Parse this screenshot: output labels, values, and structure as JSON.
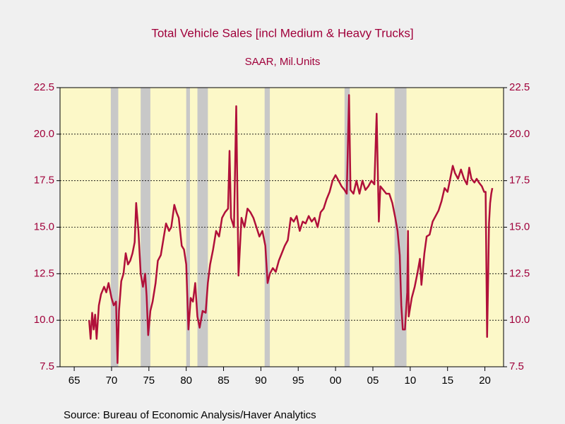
{
  "chart_data": {
    "type": "line",
    "title": "Total Vehicle Sales [incl Medium & Heavy Trucks]",
    "subtitle": "SAAR, Mil.Units",
    "source": "Source:  Bureau of Economic Analysis/Haver Analytics",
    "xlim": [
      1963.1,
      2022.5
    ],
    "xticks": [
      {
        "value": 1965,
        "label": "65"
      },
      {
        "value": 1970,
        "label": "70"
      },
      {
        "value": 1975,
        "label": "75"
      },
      {
        "value": 1980,
        "label": "80"
      },
      {
        "value": 1985,
        "label": "85"
      },
      {
        "value": 1990,
        "label": "90"
      },
      {
        "value": 1995,
        "label": "95"
      },
      {
        "value": 2000,
        "label": "00"
      },
      {
        "value": 2005,
        "label": "05"
      },
      {
        "value": 2010,
        "label": "10"
      },
      {
        "value": 2015,
        "label": "15"
      },
      {
        "value": 2020,
        "label": "20"
      }
    ],
    "ylim": [
      7.5,
      22.5
    ],
    "yticks": [
      {
        "value": 7.5,
        "label": "7.5"
      },
      {
        "value": 10,
        "label": "10.0"
      },
      {
        "value": 12.5,
        "label": "12.5"
      },
      {
        "value": 15,
        "label": "15.0"
      },
      {
        "value": 17.5,
        "label": "17.5"
      },
      {
        "value": 20,
        "label": "20.0"
      },
      {
        "value": 22.5,
        "label": "22.5"
      }
    ],
    "grid": true,
    "recessions": [
      [
        1969.9,
        1970.9
      ],
      [
        1973.9,
        1975.2
      ],
      [
        1980.0,
        1980.5
      ],
      [
        1981.5,
        1982.9
      ],
      [
        1990.5,
        1991.2
      ],
      [
        2001.2,
        2001.9
      ],
      [
        2007.9,
        2009.5
      ]
    ],
    "recession_color": "#c8c8c8",
    "plot_color": "#fcf8c8",
    "x": [
      1967.0,
      1967.2,
      1967.4,
      1967.6,
      1967.8,
      1968.0,
      1968.3,
      1968.6,
      1969.0,
      1969.3,
      1969.6,
      1970.0,
      1970.3,
      1970.6,
      1970.8,
      1971.0,
      1971.3,
      1971.6,
      1971.9,
      1972.2,
      1972.5,
      1972.8,
      1973.1,
      1973.3,
      1973.6,
      1973.9,
      1974.2,
      1974.5,
      1974.7,
      1974.9,
      1975.2,
      1975.5,
      1975.9,
      1976.2,
      1976.6,
      1977.0,
      1977.3,
      1977.7,
      1978.0,
      1978.4,
      1978.7,
      1979.0,
      1979.4,
      1979.7,
      1980.0,
      1980.3,
      1980.6,
      1980.9,
      1981.2,
      1981.5,
      1981.8,
      1982.2,
      1982.6,
      1982.9,
      1983.2,
      1983.6,
      1984.0,
      1984.4,
      1984.8,
      1985.2,
      1985.6,
      1985.8,
      1986.0,
      1986.4,
      1986.7,
      1986.9,
      1987.0,
      1987.4,
      1987.8,
      1988.2,
      1988.6,
      1989.0,
      1989.4,
      1989.8,
      1990.2,
      1990.6,
      1990.9,
      1991.2,
      1991.6,
      1992.0,
      1992.4,
      1992.8,
      1993.2,
      1993.6,
      1994.0,
      1994.4,
      1994.8,
      1995.2,
      1995.6,
      1996.0,
      1996.4,
      1996.8,
      1997.2,
      1997.6,
      1998.0,
      1998.4,
      1998.8,
      1999.2,
      1999.6,
      2000.0,
      2000.4,
      2000.8,
      2001.2,
      2001.5,
      2001.8,
      2002.0,
      2002.4,
      2002.8,
      2003.2,
      2003.6,
      2004.0,
      2004.4,
      2004.8,
      2005.2,
      2005.5,
      2005.8,
      2006.0,
      2006.4,
      2006.8,
      2007.2,
      2007.6,
      2008.0,
      2008.3,
      2008.6,
      2008.8,
      2009.0,
      2009.3,
      2009.6,
      2009.7,
      2009.8,
      2010.2,
      2010.6,
      2011.0,
      2011.3,
      2011.5,
      2011.9,
      2012.2,
      2012.6,
      2013.0,
      2013.4,
      2013.8,
      2014.2,
      2014.6,
      2015.0,
      2015.3,
      2015.7,
      2016.0,
      2016.4,
      2016.8,
      2017.2,
      2017.6,
      2017.9,
      2018.2,
      2018.6,
      2018.9,
      2019.2,
      2019.6,
      2019.9,
      2020.1,
      2020.3,
      2020.45,
      2020.55,
      2020.7,
      2020.85,
      2021.0
    ],
    "series": [
      {
        "color": "#b0103a",
        "values": [
          10.0,
          9.0,
          10.4,
          9.5,
          10.3,
          9.0,
          10.8,
          11.4,
          11.8,
          11.5,
          12.0,
          11.2,
          10.8,
          11.0,
          7.7,
          10.5,
          12.1,
          12.5,
          13.6,
          13.0,
          13.2,
          13.6,
          14.2,
          16.3,
          14.8,
          12.5,
          11.8,
          12.5,
          11.3,
          9.2,
          10.5,
          11.0,
          12.0,
          13.2,
          13.5,
          14.5,
          15.2,
          14.8,
          15.0,
          16.2,
          15.8,
          15.5,
          14.0,
          13.8,
          13.0,
          9.5,
          11.2,
          11.0,
          12.0,
          10.2,
          9.6,
          10.5,
          10.4,
          12.0,
          13.0,
          13.8,
          14.8,
          14.5,
          15.5,
          15.8,
          16.0,
          19.1,
          15.5,
          15.0,
          21.5,
          15.5,
          12.4,
          15.5,
          15.0,
          16.0,
          15.8,
          15.5,
          15.0,
          14.5,
          14.8,
          14.0,
          12.0,
          12.5,
          12.8,
          12.6,
          13.2,
          13.6,
          14.0,
          14.3,
          15.5,
          15.3,
          15.6,
          14.8,
          15.3,
          15.2,
          15.6,
          15.3,
          15.5,
          15.0,
          15.8,
          16.0,
          16.5,
          16.9,
          17.5,
          17.8,
          17.5,
          17.2,
          17.0,
          16.8,
          22.1,
          17.0,
          16.8,
          17.5,
          16.8,
          17.5,
          17.0,
          17.2,
          17.5,
          17.3,
          21.1,
          15.3,
          17.2,
          17.0,
          16.8,
          16.8,
          16.3,
          15.5,
          14.8,
          13.5,
          10.8,
          9.5,
          9.5,
          11.5,
          14.8,
          10.2,
          11.2,
          11.8,
          12.6,
          13.3,
          11.9,
          13.6,
          14.5,
          14.6,
          15.3,
          15.6,
          15.9,
          16.4,
          17.1,
          16.9,
          17.5,
          18.3,
          17.9,
          17.6,
          18.1,
          17.6,
          17.3,
          18.2,
          17.6,
          17.4,
          17.6,
          17.4,
          17.2,
          16.9,
          16.9,
          9.1,
          12.5,
          15.2,
          16.3,
          16.8,
          17.1
        ]
      }
    ]
  }
}
